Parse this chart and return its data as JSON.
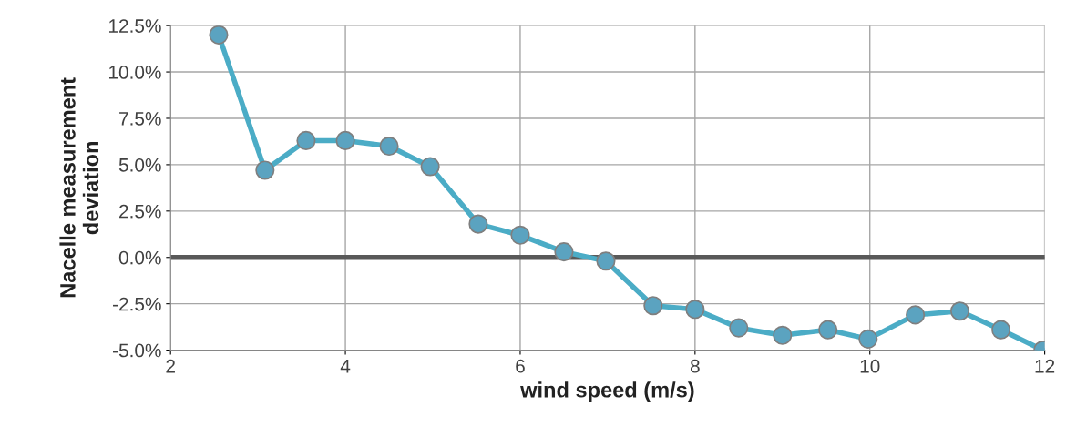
{
  "chart_data": {
    "type": "line",
    "xlabel": "wind speed (m/s)",
    "ylabel": "Nacelle measurement\ndeviation",
    "x": [
      2.55,
      3.08,
      3.55,
      4.0,
      4.5,
      4.97,
      5.52,
      6.0,
      6.5,
      6.98,
      7.52,
      8.0,
      8.5,
      9.0,
      9.52,
      9.98,
      10.52,
      11.03,
      11.5,
      11.98
    ],
    "series": [
      {
        "color": "#4bacc6",
        "values": [
          12.0,
          4.7,
          6.3,
          6.3,
          6.0,
          4.9,
          1.8,
          1.2,
          0.3,
          -0.2,
          -2.6,
          -2.8,
          -3.8,
          -4.2,
          -3.9,
          -4.4,
          -3.1,
          -2.9,
          -3.9,
          -5.0
        ]
      }
    ],
    "xlim": [
      2,
      12
    ],
    "xticks": [
      2,
      4,
      6,
      8,
      10,
      12
    ],
    "ylim": [
      -5,
      12.5
    ],
    "yticks": [
      {
        "value": -5,
        "label": "-5.0%"
      },
      {
        "value": -2.5,
        "label": "-2.5%"
      },
      {
        "value": 0,
        "label": "0.0%"
      },
      {
        "value": 2.5,
        "label": "2.5%"
      },
      {
        "value": 5,
        "label": "5.0%"
      },
      {
        "value": 7.5,
        "label": "7.5%"
      },
      {
        "value": 10,
        "label": "10.0%"
      },
      {
        "value": 12.5,
        "label": "12.5%"
      }
    ],
    "ref_lines": [
      {
        "axis": "y",
        "value": 0,
        "color": "#595959"
      }
    ],
    "grid": true,
    "marker": "circle",
    "line_style": "solid",
    "legend": false
  }
}
